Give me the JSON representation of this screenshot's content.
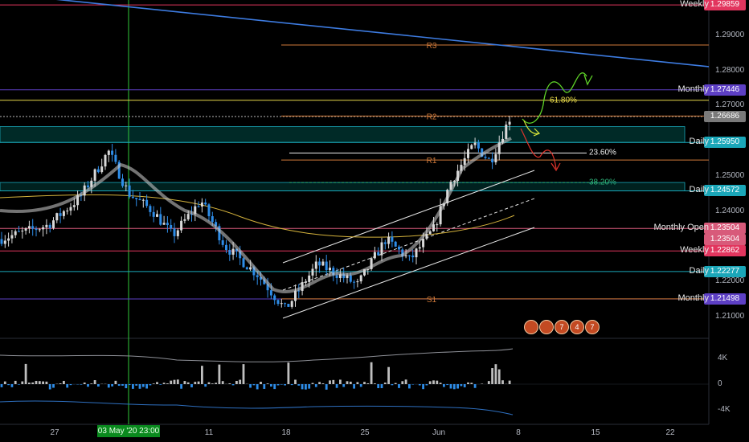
{
  "chart_data": {
    "type": "candlestick",
    "y_range": [
      1.204,
      1.3
    ],
    "x_ticks": [
      "27",
      "11",
      "18",
      "25",
      "Jun",
      "8",
      "15",
      "22"
    ],
    "y_ticks": [
      "1.29000",
      "1.28000",
      "1.27000",
      "1.25000",
      "1.24000",
      "1.22000",
      "1.21000"
    ],
    "crosshair_label": "03 May '20  23:00",
    "current_price": "1.26686",
    "levels": [
      {
        "name": "Weekly",
        "price": "1.29859",
        "value": 1.29859,
        "color": "#e2355e"
      },
      {
        "name": "Monthly",
        "price": "1.27446",
        "value": 1.27446,
        "color": "#5d3fc4"
      },
      {
        "name": "Daily",
        "price": "1.25950",
        "value": 1.2595,
        "color": "#1aa6b8"
      },
      {
        "name": "Daily",
        "price": "1.24572",
        "value": 1.24572,
        "color": "#1aa6b8"
      },
      {
        "name": "Monthly Open",
        "price": "1.23504",
        "value": 1.23504,
        "color": "#d85a7a"
      },
      {
        "name": "Weekly Open",
        "price": "1.23504",
        "value": 1.23504,
        "color": "#d85a7a"
      },
      {
        "name": "Weekly",
        "price": "1.22862",
        "value": 1.22862,
        "color": "#e2355e"
      },
      {
        "name": "Daily",
        "price": "1.22277",
        "value": 1.22277,
        "color": "#1aa6b8"
      },
      {
        "name": "Monthly",
        "price": "1.21498",
        "value": 1.21498,
        "color": "#5d3fc4"
      }
    ],
    "pivots": [
      {
        "label": "R3",
        "value": 1.2872
      },
      {
        "label": "R2",
        "value": 1.267
      },
      {
        "label": "R1",
        "value": 1.2545
      },
      {
        "label": "S1",
        "value": 1.215
      }
    ],
    "fib_levels": [
      {
        "label": "61.80%",
        "value": 1.2715
      },
      {
        "label": "23.60%",
        "value": 1.2565
      },
      {
        "label": "38.20%",
        "value": 1.2481
      }
    ],
    "indicator_ticks": [
      "4K",
      "0",
      "-4K"
    ],
    "events": [
      "",
      "",
      "7",
      "4",
      "7"
    ],
    "colors": {
      "up": "#d9d9d9",
      "down": "#2e8de8",
      "trend": "#3d7be0"
    }
  }
}
